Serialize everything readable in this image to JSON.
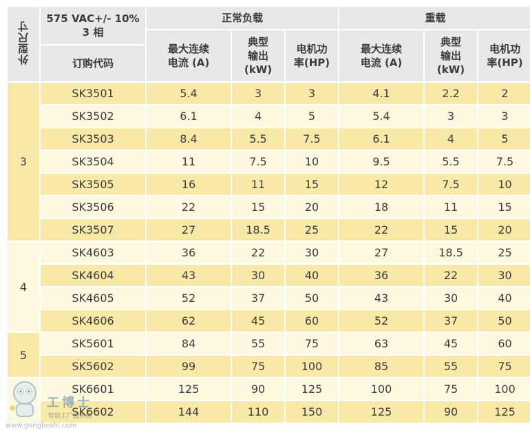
{
  "header": {
    "frame_size": "外型尺寸",
    "voltage": "575 VAC+/- 10%",
    "phase": "3 相",
    "order_code": "订购代码",
    "normal_duty": "正常负载",
    "heavy_duty": "重载",
    "max_current_l1": "最大连续",
    "max_current_l2": "电流 (A)",
    "typ_output_l1": "典型",
    "typ_output_l2": "输出",
    "typ_output_l3": "(kW)",
    "motor_power_l1": "电机功",
    "motor_power_l2": "率(HP)"
  },
  "frames": [
    {
      "label": "3",
      "rows": 7
    },
    {
      "label": "4",
      "rows": 4
    },
    {
      "label": "5",
      "rows": 2
    },
    {
      "label": "",
      "rows": 2
    }
  ],
  "rows": [
    {
      "code": "SK3501",
      "n_a": "5.4",
      "n_kw": "3",
      "n_hp": "3",
      "h_a": "4.1",
      "h_kw": "2.2",
      "h_hp": "2"
    },
    {
      "code": "SK3502",
      "n_a": "6.1",
      "n_kw": "4",
      "n_hp": "5",
      "h_a": "5.4",
      "h_kw": "3",
      "h_hp": "3"
    },
    {
      "code": "SK3503",
      "n_a": "8.4",
      "n_kw": "5.5",
      "n_hp": "7.5",
      "h_a": "6.1",
      "h_kw": "4",
      "h_hp": "5"
    },
    {
      "code": "SK3504",
      "n_a": "11",
      "n_kw": "7.5",
      "n_hp": "10",
      "h_a": "9.5",
      "h_kw": "5.5",
      "h_hp": "7.5"
    },
    {
      "code": "SK3505",
      "n_a": "16",
      "n_kw": "11",
      "n_hp": "15",
      "h_a": "12",
      "h_kw": "7.5",
      "h_hp": "10"
    },
    {
      "code": "SK3506",
      "n_a": "22",
      "n_kw": "15",
      "n_hp": "20",
      "h_a": "18",
      "h_kw": "11",
      "h_hp": "15"
    },
    {
      "code": "SK3507",
      "n_a": "27",
      "n_kw": "18.5",
      "n_hp": "25",
      "h_a": "22",
      "h_kw": "15",
      "h_hp": "20"
    },
    {
      "code": "SK4603",
      "n_a": "36",
      "n_kw": "22",
      "n_hp": "30",
      "h_a": "27",
      "h_kw": "18.5",
      "h_hp": "25"
    },
    {
      "code": "SK4604",
      "n_a": "43",
      "n_kw": "30",
      "n_hp": "40",
      "h_a": "36",
      "h_kw": "22",
      "h_hp": "30"
    },
    {
      "code": "SK4605",
      "n_a": "52",
      "n_kw": "37",
      "n_hp": "50",
      "h_a": "43",
      "h_kw": "30",
      "h_hp": "40"
    },
    {
      "code": "SK4606",
      "n_a": "62",
      "n_kw": "45",
      "n_hp": "60",
      "h_a": "52",
      "h_kw": "37",
      "h_hp": "50"
    },
    {
      "code": "SK5601",
      "n_a": "84",
      "n_kw": "55",
      "n_hp": "75",
      "h_a": "63",
      "h_kw": "45",
      "h_hp": "60"
    },
    {
      "code": "SK5602",
      "n_a": "99",
      "n_kw": "75",
      "n_hp": "100",
      "h_a": "85",
      "h_kw": "55",
      "h_hp": "75"
    },
    {
      "code": "SK6601",
      "n_a": "125",
      "n_kw": "90",
      "n_hp": "125",
      "h_a": "100",
      "h_kw": "75",
      "h_hp": "100"
    },
    {
      "code": "SK6602",
      "n_a": "144",
      "n_kw": "110",
      "n_hp": "150",
      "h_a": "125",
      "h_kw": "90",
      "h_hp": "125"
    }
  ],
  "watermark": {
    "brand": "工博士",
    "sub": "智能工厂服务商",
    "url": "www.gongboshi.com"
  }
}
